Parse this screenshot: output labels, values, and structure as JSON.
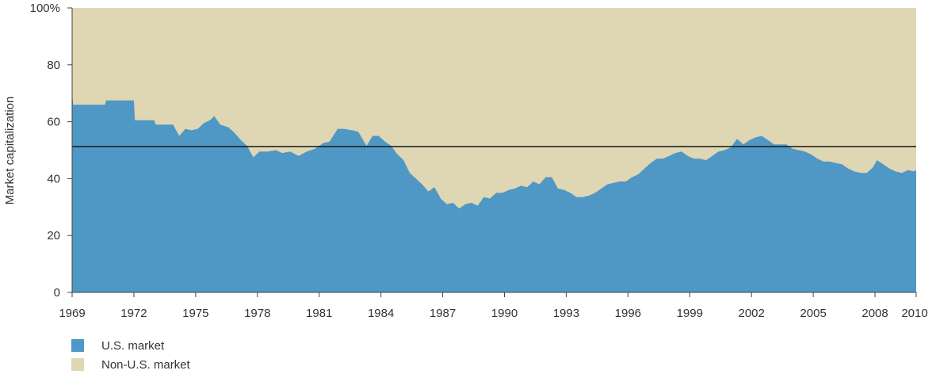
{
  "chart_data": {
    "type": "area",
    "stacked_percent": true,
    "ylabel": "Market capitalization",
    "xlabel": "",
    "title": "",
    "ylim": [
      0,
      100
    ],
    "xlim": [
      1969,
      2010
    ],
    "y_ticks": [
      {
        "value": 0,
        "label": "0"
      },
      {
        "value": 20,
        "label": "20"
      },
      {
        "value": 40,
        "label": "40"
      },
      {
        "value": 60,
        "label": "60"
      },
      {
        "value": 80,
        "label": "80"
      },
      {
        "value": 100,
        "label": "100%"
      }
    ],
    "x_ticks": [
      "1969",
      "1972",
      "1975",
      "1978",
      "1981",
      "1984",
      "1987",
      "1990",
      "1993",
      "1996",
      "1999",
      "2002",
      "2005",
      "2008",
      "2010"
    ],
    "reference_line": {
      "value": 51.3
    },
    "colors": {
      "us": "#4f97c4",
      "non_us": "#dfd6b3",
      "line": "#1a1a1a",
      "axis": "#444444"
    },
    "series": [
      {
        "name": "U.S. market",
        "points": [
          [
            1969.0,
            70
          ],
          [
            1969.05,
            66
          ],
          [
            1970.6,
            66
          ],
          [
            1970.65,
            67.5
          ],
          [
            1972.0,
            67.5
          ],
          [
            1972.05,
            60.5
          ],
          [
            1973.0,
            60.5
          ],
          [
            1973.05,
            59
          ],
          [
            1973.9,
            59
          ],
          [
            1974.2,
            55
          ],
          [
            1974.5,
            57.5
          ],
          [
            1974.8,
            57
          ],
          [
            1975.1,
            57.5
          ],
          [
            1975.4,
            59.5
          ],
          [
            1975.7,
            60.5
          ],
          [
            1975.9,
            62
          ],
          [
            1976.2,
            59
          ],
          [
            1976.6,
            58
          ],
          [
            1976.9,
            56
          ],
          [
            1977.2,
            53.5
          ],
          [
            1977.5,
            51.5
          ],
          [
            1977.8,
            47.5
          ],
          [
            1978.1,
            49.5
          ],
          [
            1978.5,
            49.5
          ],
          [
            1978.9,
            50
          ],
          [
            1979.2,
            49
          ],
          [
            1979.6,
            49.5
          ],
          [
            1980.0,
            48
          ],
          [
            1980.4,
            49.5
          ],
          [
            1980.8,
            50.5
          ],
          [
            1981.2,
            52.5
          ],
          [
            1981.5,
            53
          ],
          [
            1981.9,
            57.5
          ],
          [
            1982.2,
            57.5
          ],
          [
            1982.6,
            57
          ],
          [
            1982.9,
            56.5
          ],
          [
            1983.3,
            51.5
          ],
          [
            1983.6,
            55
          ],
          [
            1983.9,
            55
          ],
          [
            1984.2,
            53
          ],
          [
            1984.5,
            51.5
          ],
          [
            1984.8,
            48.5
          ],
          [
            1985.1,
            46.5
          ],
          [
            1985.4,
            42
          ],
          [
            1985.7,
            40
          ],
          [
            1986.0,
            38
          ],
          [
            1986.3,
            35.5
          ],
          [
            1986.6,
            37
          ],
          [
            1986.9,
            33
          ],
          [
            1987.2,
            31
          ],
          [
            1987.5,
            31.5
          ],
          [
            1987.8,
            29.5
          ],
          [
            1988.1,
            31
          ],
          [
            1988.4,
            31.5
          ],
          [
            1988.7,
            30.5
          ],
          [
            1989.0,
            33.5
          ],
          [
            1989.3,
            33
          ],
          [
            1989.6,
            35
          ],
          [
            1989.9,
            35
          ],
          [
            1990.2,
            36
          ],
          [
            1990.5,
            36.5
          ],
          [
            1990.8,
            37.5
          ],
          [
            1991.1,
            37
          ],
          [
            1991.4,
            39
          ],
          [
            1991.7,
            38
          ],
          [
            1992.0,
            40.5
          ],
          [
            1992.3,
            40.5
          ],
          [
            1992.6,
            36.5
          ],
          [
            1992.9,
            36
          ],
          [
            1993.2,
            35
          ],
          [
            1993.5,
            33.5
          ],
          [
            1993.8,
            33.5
          ],
          [
            1994.1,
            34
          ],
          [
            1994.4,
            35
          ],
          [
            1994.7,
            36.5
          ],
          [
            1995.0,
            38
          ],
          [
            1995.3,
            38.5
          ],
          [
            1995.6,
            39
          ],
          [
            1995.9,
            39
          ],
          [
            1996.2,
            40.5
          ],
          [
            1996.5,
            41.5
          ],
          [
            1996.8,
            43.5
          ],
          [
            1997.1,
            45.5
          ],
          [
            1997.4,
            47
          ],
          [
            1997.7,
            47
          ],
          [
            1998.0,
            48
          ],
          [
            1998.3,
            49
          ],
          [
            1998.6,
            49.5
          ],
          [
            1998.9,
            48
          ],
          [
            1999.2,
            47
          ],
          [
            1999.5,
            47
          ],
          [
            1999.8,
            46.5
          ],
          [
            2000.1,
            48
          ],
          [
            2000.4,
            49.5
          ],
          [
            2000.7,
            50
          ],
          [
            2001.0,
            51
          ],
          [
            2001.3,
            54
          ],
          [
            2001.6,
            52
          ],
          [
            2001.9,
            53.5
          ],
          [
            2002.2,
            54.5
          ],
          [
            2002.5,
            55
          ],
          [
            2002.8,
            53.5
          ],
          [
            2003.1,
            52
          ],
          [
            2003.4,
            52
          ],
          [
            2003.7,
            52
          ],
          [
            2004.0,
            50.5
          ],
          [
            2004.3,
            50
          ],
          [
            2004.6,
            49.5
          ],
          [
            2004.9,
            48.5
          ],
          [
            2005.2,
            47
          ],
          [
            2005.5,
            46
          ],
          [
            2005.8,
            46
          ],
          [
            2006.1,
            45.5
          ],
          [
            2006.4,
            45
          ],
          [
            2006.7,
            43.5
          ],
          [
            2007.0,
            42.5
          ],
          [
            2007.3,
            42
          ],
          [
            2007.6,
            42
          ],
          [
            2007.9,
            44
          ],
          [
            2008.1,
            46.5
          ],
          [
            2008.4,
            45
          ],
          [
            2008.7,
            43.5
          ],
          [
            2009.0,
            42.5
          ],
          [
            2009.3,
            42
          ],
          [
            2009.6,
            43
          ],
          [
            2009.9,
            42.5
          ],
          [
            2010.0,
            43
          ]
        ]
      },
      {
        "name": "Non-U.S. market",
        "fills_to": 100
      }
    ]
  }
}
